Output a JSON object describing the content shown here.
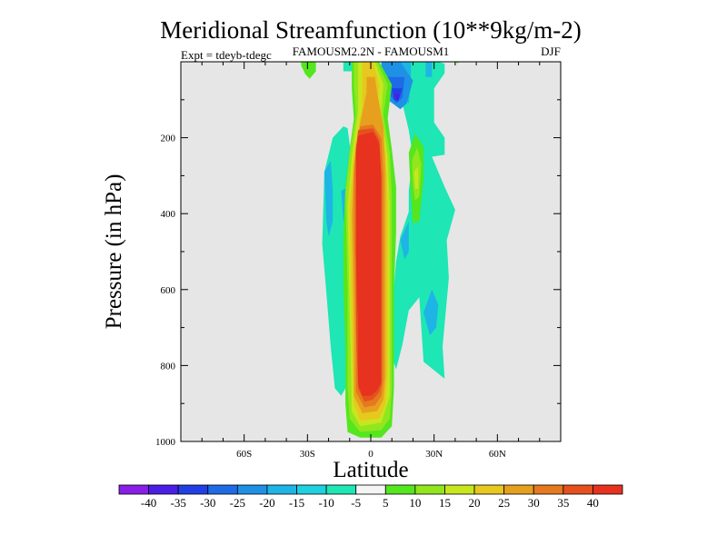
{
  "chart_data": {
    "type": "heatmap",
    "title": "Meridional Streamfunction (10**9kg/m-2)",
    "subtitle_left": "Expt = tdeyb-tdegc",
    "subtitle_center": "FAMOUSM2.2N - FAMOUSM1",
    "subtitle_right": "DJF",
    "xlabel": "Latitude",
    "ylabel": "Pressure (in hPa)",
    "xlim": [
      -90,
      90
    ],
    "ylim": [
      1000,
      0
    ],
    "y_reversed": true,
    "x_ticks": [
      {
        "value": -60,
        "label": "60S"
      },
      {
        "value": -30,
        "label": "30S"
      },
      {
        "value": 0,
        "label": "0"
      },
      {
        "value": 30,
        "label": "30N"
      },
      {
        "value": 60,
        "label": "60N"
      }
    ],
    "y_ticks": [
      {
        "value": 200,
        "label": "200"
      },
      {
        "value": 400,
        "label": "400"
      },
      {
        "value": 600,
        "label": "600"
      },
      {
        "value": 800,
        "label": "800"
      },
      {
        "value": 1000,
        "label": "1000"
      }
    ],
    "background_color": "#e6e6e6",
    "colorbar": {
      "labels": [
        "-40",
        "-35",
        "-30",
        "-25",
        "-20",
        "-15",
        "-10",
        "-5",
        "5",
        "10",
        "15",
        "20",
        "25",
        "30",
        "35",
        "40"
      ],
      "colors": [
        "#8a1ee6",
        "#4a1ee6",
        "#2040e6",
        "#1e6be6",
        "#1e91e6",
        "#1eb4e6",
        "#1ed0e0",
        "#1ee6b4",
        "#f4f4f4",
        "#54e61e",
        "#92e61e",
        "#c8e61e",
        "#e6c81e",
        "#e6a01e",
        "#e6781e",
        "#e6501e",
        "#e6321e"
      ]
    },
    "regions": [
      {
        "level": "5 to 10",
        "color": "#54e61e",
        "points": [
          [
            -33,
            0
          ],
          [
            -26,
            0
          ],
          [
            -26,
            25
          ],
          [
            -29,
            45
          ],
          [
            -31,
            33
          ],
          [
            -33,
            10
          ]
        ]
      },
      {
        "level": "5 to 10",
        "color": "#54e61e",
        "points": [
          [
            40,
            0
          ],
          [
            42,
            0
          ],
          [
            41.5,
            3
          ],
          [
            40.5,
            3
          ]
        ]
      },
      {
        "level": "5 to 10",
        "color": "#54e61e",
        "points": [
          [
            -20,
            575
          ],
          [
            -19.5,
            575
          ],
          [
            -19.5,
            635
          ],
          [
            -20,
            635
          ]
        ]
      },
      {
        "level": "-10 to -5",
        "color": "#1ee6b4",
        "points": [
          [
            -13,
            0
          ],
          [
            -9,
            0
          ],
          [
            -9,
            25
          ],
          [
            -13,
            25
          ]
        ]
      },
      {
        "level": "-10 to -5",
        "color": "#1ee6b4",
        "points": [
          [
            13,
            0
          ],
          [
            32,
            0
          ],
          [
            35,
            5
          ],
          [
            35,
            30
          ],
          [
            30,
            70
          ],
          [
            30,
            160
          ],
          [
            35,
            200
          ],
          [
            35,
            245
          ],
          [
            29,
            250
          ],
          [
            35,
            330
          ],
          [
            40,
            390
          ],
          [
            36,
            470
          ],
          [
            37,
            570
          ],
          [
            34,
            750
          ],
          [
            35,
            835
          ],
          [
            25,
            790
          ],
          [
            23,
            620
          ],
          [
            18,
            655
          ],
          [
            15,
            745
          ],
          [
            12,
            810
          ],
          [
            9,
            760
          ],
          [
            10,
            655
          ],
          [
            12,
            525
          ],
          [
            14,
            460
          ],
          [
            18,
            395
          ],
          [
            18,
            340
          ],
          [
            20,
            250
          ],
          [
            18,
            180
          ],
          [
            15,
            110
          ],
          [
            13,
            40
          ]
        ]
      },
      {
        "level": "-10 to -5",
        "color": "#1ee6b4",
        "points": [
          [
            -22,
            290
          ],
          [
            -18,
            200
          ],
          [
            -13,
            170
          ],
          [
            -11,
            175
          ],
          [
            -9,
            260
          ],
          [
            -8,
            325
          ],
          [
            -10,
            400
          ],
          [
            -10,
            600
          ],
          [
            -10,
            840
          ],
          [
            -14,
            880
          ],
          [
            -17,
            860
          ],
          [
            -19,
            750
          ],
          [
            -21,
            610
          ],
          [
            -23,
            480
          ]
        ]
      },
      {
        "level": "-15 to -10",
        "color": "#1eb4e6",
        "points": [
          [
            -22,
            290
          ],
          [
            -19,
            260
          ],
          [
            -18,
            340
          ],
          [
            -18,
            420
          ],
          [
            -20,
            460
          ],
          [
            -21,
            420
          ]
        ]
      },
      {
        "level": "-15 to -10",
        "color": "#1eb4e6",
        "points": [
          [
            -14,
            340
          ],
          [
            -11,
            330
          ],
          [
            -10,
            380
          ],
          [
            -10,
            440
          ],
          [
            -13,
            420
          ]
        ]
      },
      {
        "level": "-15 to -10",
        "color": "#1eb4e6",
        "points": [
          [
            14,
            0
          ],
          [
            19,
            0
          ],
          [
            19,
            50
          ],
          [
            18,
            110
          ],
          [
            13,
            80
          ]
        ]
      },
      {
        "level": "-15 to -10",
        "color": "#1eb4e6",
        "points": [
          [
            26,
            0
          ],
          [
            29,
            0
          ],
          [
            29,
            40
          ],
          [
            26,
            40
          ]
        ]
      },
      {
        "level": "-15 to -10",
        "color": "#1eb4e6",
        "points": [
          [
            14,
            470
          ],
          [
            18,
            420
          ],
          [
            18,
            500
          ],
          [
            16,
            520
          ]
        ]
      },
      {
        "level": "-15 to -10",
        "color": "#1eb4e6",
        "points": [
          [
            25,
            660
          ],
          [
            29,
            600
          ],
          [
            32,
            640
          ],
          [
            31,
            700
          ],
          [
            28,
            720
          ]
        ]
      },
      {
        "level": "-20 to -15",
        "color": "#1e91e6",
        "points": [
          [
            5,
            0
          ],
          [
            14,
            0
          ],
          [
            20,
            50
          ],
          [
            17,
            110
          ],
          [
            14,
            125
          ],
          [
            8,
            100
          ],
          [
            5,
            30
          ]
        ]
      },
      {
        "level": "-25 to -20",
        "color": "#1e6be6",
        "points": [
          [
            8,
            40
          ],
          [
            16,
            40
          ],
          [
            15,
            95
          ],
          [
            12,
            110
          ],
          [
            8,
            80
          ]
        ]
      },
      {
        "level": "-30 to -25",
        "color": "#2040e6",
        "points": [
          [
            10,
            70
          ],
          [
            15,
            70
          ],
          [
            13,
            105
          ],
          [
            11,
            100
          ]
        ]
      },
      {
        "level": "-35 to -30",
        "color": "#4a1ee6",
        "points": [
          [
            11,
            85
          ],
          [
            14,
            85
          ],
          [
            13,
            100
          ],
          [
            12,
            100
          ]
        ]
      },
      {
        "level": "5 to 10",
        "color": "#54e61e",
        "points": [
          [
            18,
            240
          ],
          [
            21,
            190
          ],
          [
            25,
            225
          ],
          [
            25,
            310
          ],
          [
            23,
            420
          ],
          [
            20,
            425
          ],
          [
            19,
            350
          ]
        ]
      },
      {
        "level": "10 to 15",
        "color": "#92e61e",
        "points": [
          [
            19.5,
            260
          ],
          [
            22,
            225
          ],
          [
            24,
            270
          ],
          [
            23,
            355
          ],
          [
            21,
            365
          ],
          [
            20,
            320
          ]
        ]
      },
      {
        "level": "15 to 20",
        "color": "#c8e61e",
        "points": [
          [
            20.5,
            290
          ],
          [
            22.5,
            275
          ],
          [
            22.5,
            335
          ],
          [
            21,
            335
          ]
        ]
      },
      {
        "level": "5 to 10",
        "color": "#54e61e",
        "points": [
          [
            -9,
            0
          ],
          [
            4,
            0
          ],
          [
            10,
            60
          ],
          [
            8,
            150
          ],
          [
            10,
            230
          ],
          [
            12,
            330
          ],
          [
            12,
            450
          ],
          [
            11,
            600
          ],
          [
            11,
            760
          ],
          [
            11,
            860
          ],
          [
            10,
            960
          ],
          [
            5,
            990
          ],
          [
            -5,
            990
          ],
          [
            -11,
            975
          ],
          [
            -12,
            900
          ],
          [
            -12,
            750
          ],
          [
            -13,
            600
          ],
          [
            -13,
            450
          ],
          [
            -12,
            330
          ],
          [
            -10,
            230
          ],
          [
            -8,
            150
          ],
          [
            -9,
            70
          ]
        ]
      },
      {
        "level": "10 to 15",
        "color": "#92e61e",
        "points": [
          [
            -8,
            0
          ],
          [
            3,
            0
          ],
          [
            8,
            60
          ],
          [
            6,
            140
          ],
          [
            9,
            240
          ],
          [
            10,
            350
          ],
          [
            10,
            600
          ],
          [
            10,
            860
          ],
          [
            9,
            940
          ],
          [
            5,
            970
          ],
          [
            -5,
            975
          ],
          [
            -10,
            940
          ],
          [
            -11,
            860
          ],
          [
            -11,
            600
          ],
          [
            -12,
            350
          ],
          [
            -10,
            240
          ],
          [
            -7,
            140
          ],
          [
            -8,
            60
          ]
        ]
      },
      {
        "level": "15 to 20",
        "color": "#c8e61e",
        "points": [
          [
            -6,
            0
          ],
          [
            2,
            0
          ],
          [
            6,
            60
          ],
          [
            5,
            130
          ],
          [
            8,
            250
          ],
          [
            9,
            380
          ],
          [
            9,
            650
          ],
          [
            9,
            880
          ],
          [
            5,
            950
          ],
          [
            -5,
            960
          ],
          [
            -9,
            920
          ],
          [
            -10,
            650
          ],
          [
            -11,
            380
          ],
          [
            -9,
            250
          ],
          [
            -6,
            130
          ],
          [
            -6,
            60
          ]
        ]
      },
      {
        "level": "20 to 25",
        "color": "#e6c81e",
        "points": [
          [
            -4,
            0
          ],
          [
            1,
            0
          ],
          [
            4,
            60
          ],
          [
            3,
            120
          ],
          [
            7,
            240
          ],
          [
            8,
            380
          ],
          [
            8,
            800
          ],
          [
            7,
            900
          ],
          [
            4,
            940
          ],
          [
            -5,
            945
          ],
          [
            -8,
            900
          ],
          [
            -9,
            700
          ],
          [
            -10,
            380
          ],
          [
            -8,
            240
          ],
          [
            -4,
            120
          ],
          [
            -4,
            60
          ]
        ]
      },
      {
        "level": "25 to 30",
        "color": "#e6a01e",
        "points": [
          [
            -2,
            40
          ],
          [
            2,
            40
          ],
          [
            3,
            80
          ],
          [
            6,
            170
          ],
          [
            7,
            300
          ],
          [
            7,
            400
          ],
          [
            7,
            830
          ],
          [
            6,
            890
          ],
          [
            3,
            920
          ],
          [
            -4,
            925
          ],
          [
            -8,
            880
          ],
          [
            -8,
            700
          ],
          [
            -9,
            400
          ],
          [
            -8,
            270
          ],
          [
            -5,
            160
          ],
          [
            -2,
            80
          ]
        ]
      },
      {
        "level": "30 to 35",
        "color": "#e6781e",
        "points": [
          [
            -5,
            170
          ],
          [
            1,
            165
          ],
          [
            5,
            200
          ],
          [
            6,
            300
          ],
          [
            6,
            440
          ],
          [
            6,
            840
          ],
          [
            5,
            880
          ],
          [
            2,
            905
          ],
          [
            -3,
            910
          ],
          [
            -7,
            870
          ],
          [
            -7,
            700
          ],
          [
            -8,
            450
          ],
          [
            -8,
            300
          ],
          [
            -7,
            220
          ]
        ]
      },
      {
        "level": "35 to 40",
        "color": "#e6501e",
        "points": [
          [
            -6,
            180
          ],
          [
            1,
            175
          ],
          [
            4,
            205
          ],
          [
            5,
            300
          ],
          [
            5,
            850
          ],
          [
            4,
            870
          ],
          [
            1,
            890
          ],
          [
            -3,
            895
          ],
          [
            -6,
            860
          ],
          [
            -7,
            700
          ],
          [
            -7,
            300
          ],
          [
            -7,
            230
          ]
        ]
      },
      {
        "level": "> 40",
        "color": "#e6321e",
        "points": [
          [
            -6,
            195
          ],
          [
            1,
            185
          ],
          [
            4,
            215
          ],
          [
            5,
            300
          ],
          [
            5,
            500
          ],
          [
            5,
            845
          ],
          [
            3,
            865
          ],
          [
            0,
            880
          ],
          [
            -4,
            880
          ],
          [
            -6,
            850
          ],
          [
            -6,
            700
          ],
          [
            -7,
            500
          ],
          [
            -7,
            300
          ],
          [
            -7,
            240
          ]
        ]
      }
    ]
  }
}
